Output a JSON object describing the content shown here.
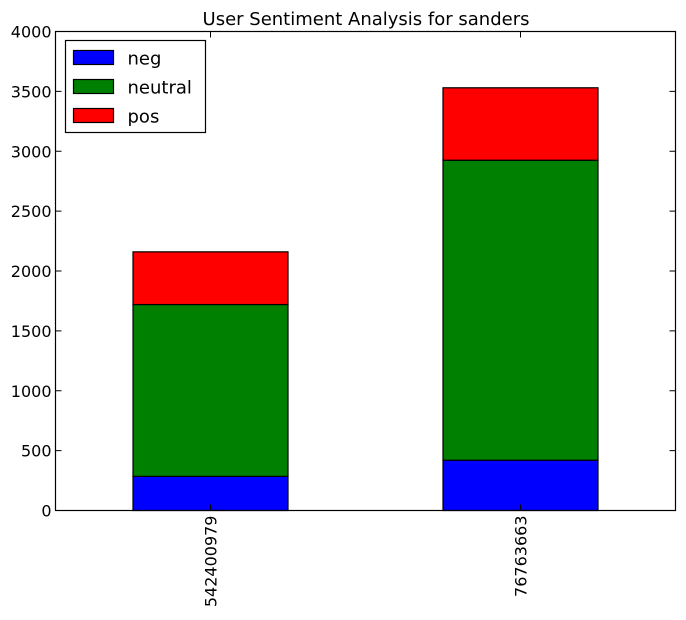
{
  "chart_data": {
    "type": "bar",
    "stacked": true,
    "title": "User Sentiment Analysis for sanders",
    "xlabel": "",
    "ylabel": "",
    "categories": [
      "542400979",
      "76763663"
    ],
    "series": [
      {
        "name": "neg",
        "color": "#0000ff",
        "values": [
          285,
          420
        ]
      },
      {
        "name": "neutral",
        "color": "#008000",
        "values": [
          1435,
          2505
        ]
      },
      {
        "name": "pos",
        "color": "#ff0000",
        "values": [
          440,
          605
        ]
      }
    ],
    "ylim": [
      0,
      4000
    ],
    "yticks": [
      0,
      500,
      1000,
      1500,
      2000,
      2500,
      3000,
      3500,
      4000
    ],
    "ytick_labels": [
      "0",
      "500",
      "1000",
      "1500",
      "2000",
      "2500",
      "3000",
      "3500",
      "4000"
    ],
    "legend_position": "top-left",
    "grid": false
  }
}
